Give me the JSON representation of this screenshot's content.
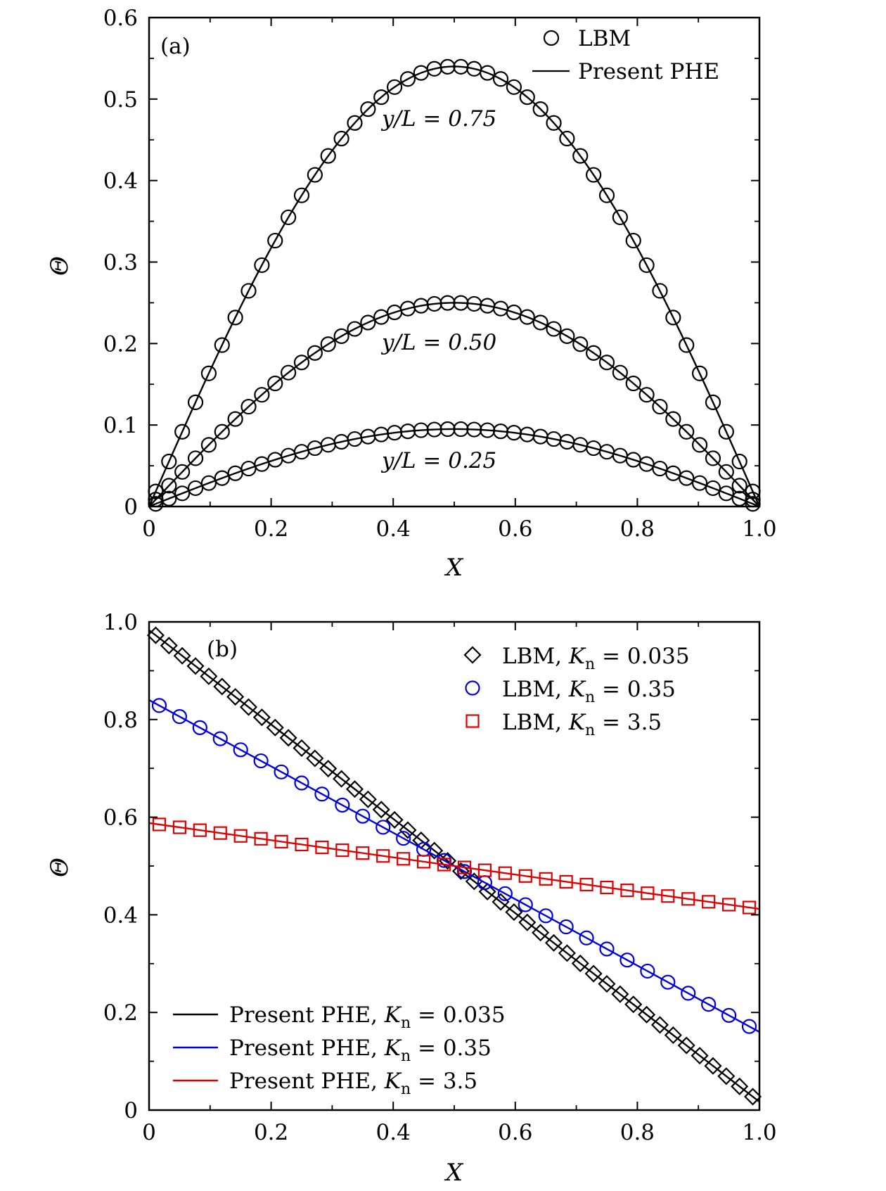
{
  "chart_data": [
    {
      "type": "line",
      "panel_label": "(a)",
      "xlabel": "X",
      "ylabel": "Θ",
      "xlim": [
        0,
        1.0
      ],
      "ylim": [
        0,
        0.6
      ],
      "xticks": [
        "0",
        "0.2",
        "0.4",
        "0.6",
        "0.8",
        "1.0"
      ],
      "yticks": [
        "0",
        "0.1",
        "0.2",
        "0.3",
        "0.4",
        "0.5",
        "0.6"
      ],
      "legend": [
        {
          "label": "LBM",
          "marker": "circle",
          "color": "#000000"
        },
        {
          "label": "Present PHE",
          "marker": "line",
          "color": "#000000"
        }
      ],
      "series": [
        {
          "name": "y/L = 0.75",
          "label_text": "y/L = 0.75",
          "peak": 0.54,
          "color": "#000000",
          "lbm_points": 46
        },
        {
          "name": "y/L = 0.50",
          "label_text": "y/L = 0.50",
          "peak": 0.25,
          "color": "#000000",
          "lbm_points": 46
        },
        {
          "name": "y/L = 0.25",
          "label_text": "y/L = 0.25",
          "peak": 0.095,
          "color": "#000000",
          "lbm_points": 46
        }
      ]
    },
    {
      "type": "line",
      "panel_label": "(b)",
      "xlabel": "X",
      "ylabel": "Θ",
      "xlim": [
        0,
        1.0
      ],
      "ylim": [
        0,
        1.0
      ],
      "xticks": [
        "0",
        "0.2",
        "0.4",
        "0.6",
        "0.8",
        "1.0"
      ],
      "yticks": [
        "0",
        "0.2",
        "0.4",
        "0.6",
        "0.8",
        "1.0"
      ],
      "legend_lbm": [
        {
          "label": "LBM, K",
          "sub": "n",
          "value": "= 0.035",
          "marker": "diamond",
          "color": "#000000"
        },
        {
          "label": "LBM, K",
          "sub": "n",
          "value": "= 0.35",
          "marker": "circle",
          "color": "#0000dd"
        },
        {
          "label": "LBM, K",
          "sub": "n",
          "value": "= 3.5",
          "marker": "square",
          "color": "#dd0000"
        }
      ],
      "legend_phe": [
        {
          "label": "Present PHE, K",
          "sub": "n",
          "value": "= 0.035",
          "color": "#000000"
        },
        {
          "label": "Present PHE, K",
          "sub": "n",
          "value": "= 0.35",
          "color": "#0000dd"
        },
        {
          "label": "Present PHE, K",
          "sub": "n",
          "value": "= 3.5",
          "color": "#dd0000"
        }
      ],
      "series": [
        {
          "name": "Kn = 0.035",
          "x": [
            0,
            1.0
          ],
          "y": [
            0.983,
            0.017
          ],
          "marker": "diamond",
          "color": "#000000",
          "lbm_points": 46
        },
        {
          "name": "Kn = 0.35",
          "x": [
            0,
            1.0
          ],
          "y": [
            0.84,
            0.16
          ],
          "marker": "circle",
          "color": "#0000dd",
          "lbm_points": 30
        },
        {
          "name": "Kn = 3.5",
          "x": [
            0,
            1.0
          ],
          "y": [
            0.588,
            0.412
          ],
          "marker": "square",
          "color": "#dd0000",
          "lbm_points": 30
        }
      ]
    }
  ]
}
